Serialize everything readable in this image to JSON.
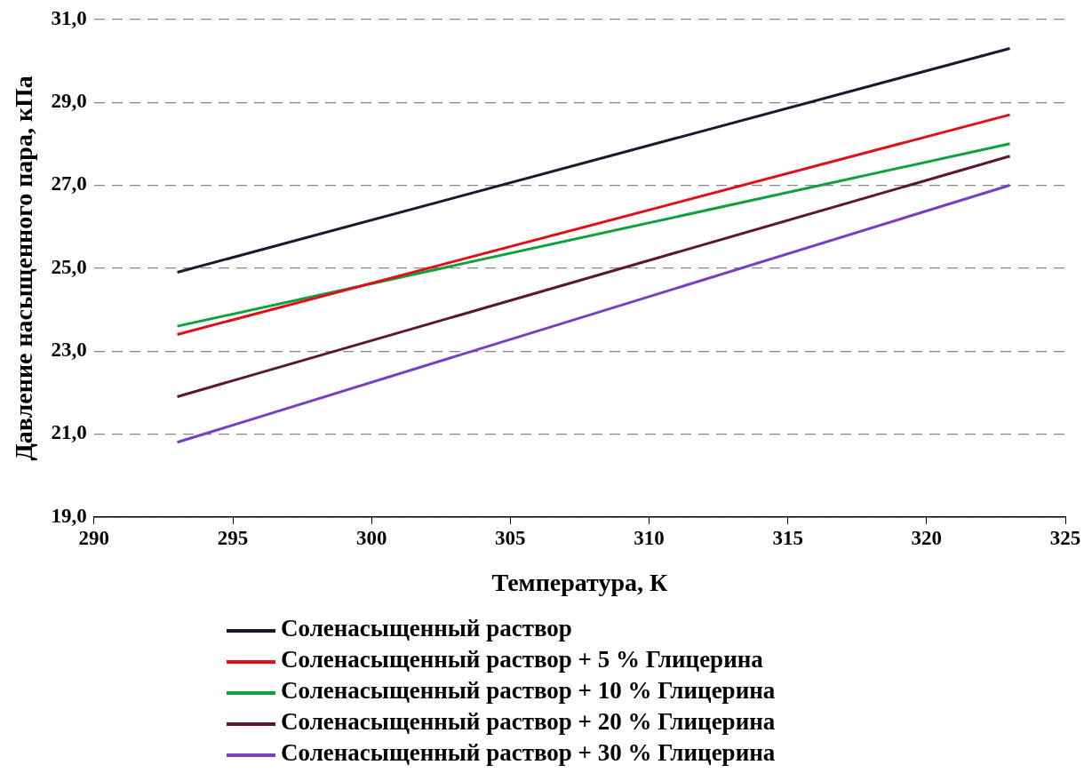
{
  "chart_data": {
    "type": "line",
    "xlabel": "Температура, К",
    "ylabel": "Давление насыщенного пара, кПа",
    "x": [
      293,
      323
    ],
    "series": [
      {
        "name": "Соленасыщенный раствор",
        "color": "#1a1a2e",
        "values": [
          24.9,
          30.3
        ]
      },
      {
        "name": "Соленасыщенный раствор + 5 % Глицерина",
        "color": "#e0101a",
        "values": [
          23.4,
          28.7
        ]
      },
      {
        "name": "Соленасыщенный раствор + 10 % Глицерина",
        "color": "#10a040",
        "values": [
          23.6,
          28.0
        ]
      },
      {
        "name": "Соленасыщенный раствор + 20 % Глицерина",
        "color": "#5a1a28",
        "values": [
          21.9,
          27.7
        ]
      },
      {
        "name": "Соленасыщенный раствор + 30 % Глицерина",
        "color": "#7a3fc0",
        "values": [
          20.8,
          27.0
        ]
      }
    ],
    "xlim": [
      290,
      325
    ],
    "xticks": [
      290,
      295,
      300,
      305,
      310,
      315,
      320,
      325
    ],
    "ylim": [
      19,
      31
    ],
    "yticks": [
      {
        "value": 19,
        "label": "19,0"
      },
      {
        "value": 21,
        "label": "21,0"
      },
      {
        "value": 23,
        "label": "23,0"
      },
      {
        "value": 25,
        "label": "25,0"
      },
      {
        "value": 27,
        "label": "27,0"
      },
      {
        "value": 29,
        "label": "29,0"
      },
      {
        "value": 31,
        "label": "31,0"
      }
    ],
    "grid": "y",
    "legend": "bottom",
    "marker": "none",
    "line_style": "solid"
  }
}
